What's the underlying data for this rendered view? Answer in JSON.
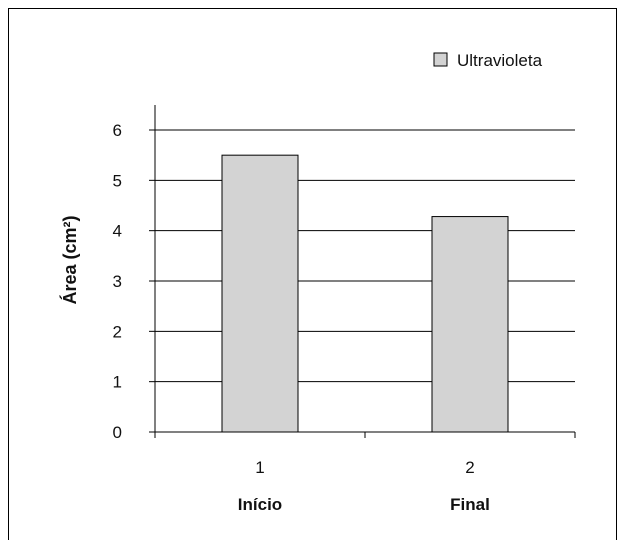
{
  "chart_data": {
    "type": "bar",
    "categories": [
      "1",
      "2"
    ],
    "category_names": [
      "Início",
      "Final"
    ],
    "series": [
      {
        "name": "Ultravioleta",
        "values": [
          5.5,
          4.28
        ],
        "color": "#d3d3d3"
      }
    ],
    "title": "",
    "xlabel": "",
    "ylabel": "Área (cm²)",
    "ylim": [
      0,
      6
    ],
    "yticks": [
      "0",
      "1",
      "2",
      "3",
      "4",
      "5",
      "6"
    ],
    "grid": true,
    "legend": "top-right"
  }
}
